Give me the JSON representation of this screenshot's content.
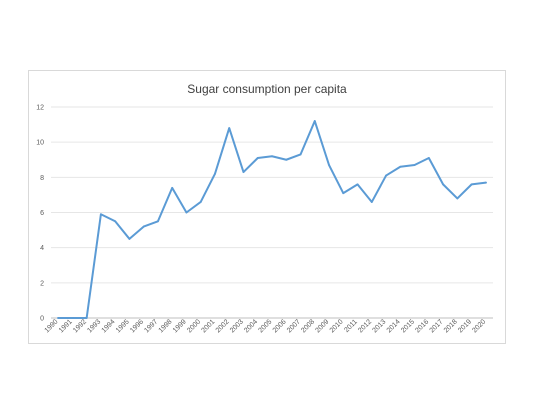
{
  "chart_data": {
    "type": "line",
    "title": "Sugar consumption per capita",
    "xlabel": "",
    "ylabel": "",
    "ylim": [
      0,
      12
    ],
    "yticks": [
      "0",
      "2",
      "4",
      "6",
      "8",
      "10",
      "12"
    ],
    "grid": true,
    "legend": "none",
    "x": [
      "1990",
      "1991",
      "1992",
      "1993",
      "1994",
      "1995",
      "1996",
      "1997",
      "1998",
      "1999",
      "2000",
      "2001",
      "2002",
      "2003",
      "2004",
      "2005",
      "2006",
      "2007",
      "2008",
      "2009",
      "2010",
      "2011",
      "2012",
      "2013",
      "2014",
      "2015",
      "2016",
      "2017",
      "2018",
      "2019",
      "2020"
    ],
    "series": [
      {
        "color": "#5b9bd5",
        "values": [
          0,
          0,
          0,
          5.9,
          5.5,
          4.5,
          5.2,
          5.5,
          7.4,
          6.0,
          6.6,
          8.2,
          10.8,
          8.3,
          9.1,
          9.2,
          9.0,
          9.3,
          11.2,
          8.7,
          7.1,
          7.6,
          6.6,
          8.1,
          8.6,
          8.7,
          9.1,
          7.6,
          6.8,
          7.6,
          7.7
        ]
      }
    ]
  }
}
